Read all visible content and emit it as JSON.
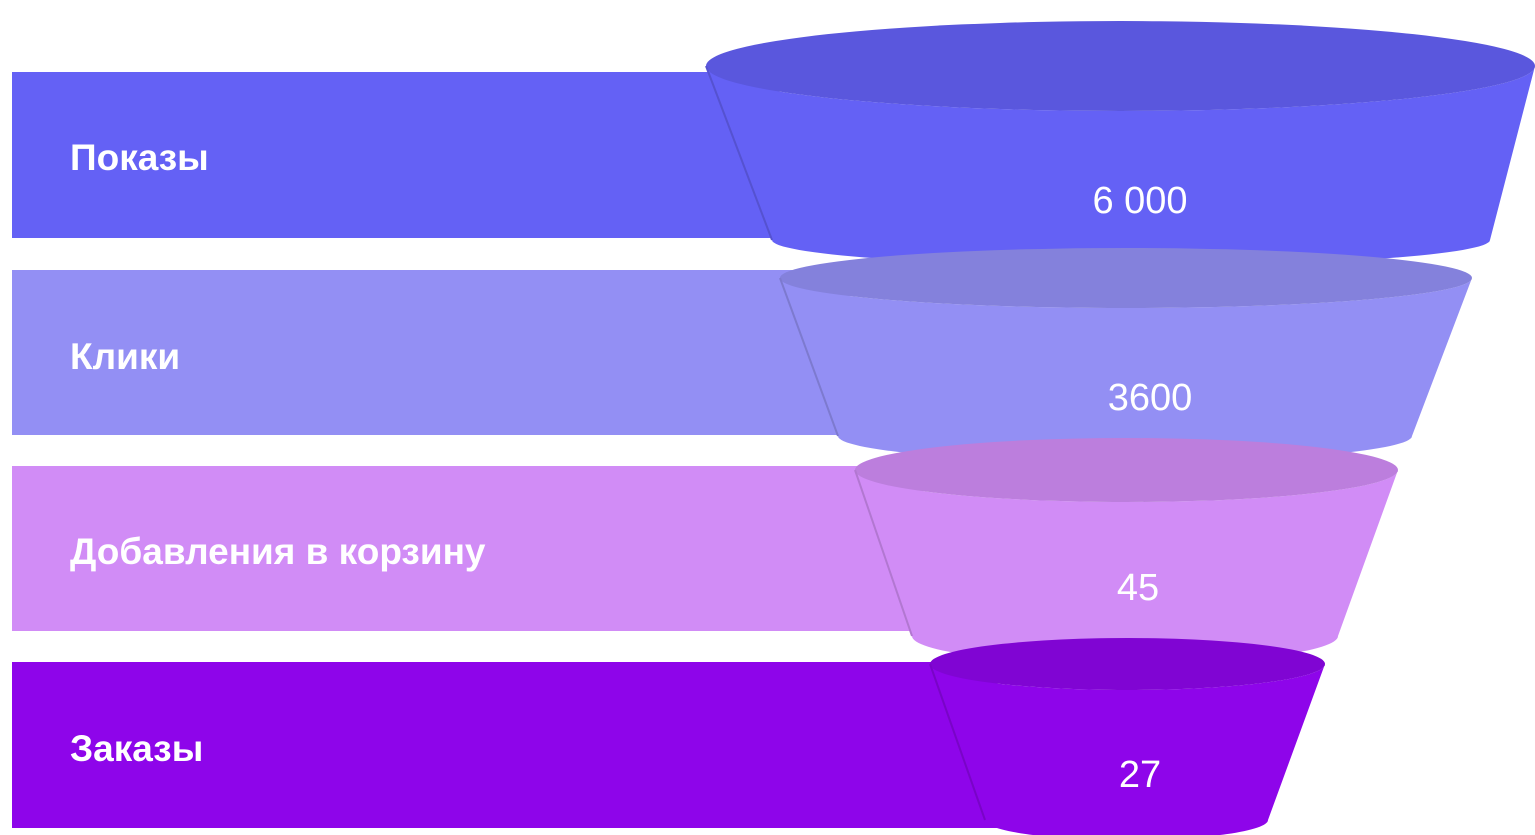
{
  "chart_data": {
    "type": "funnel",
    "stages": [
      {
        "label": "Показы",
        "value": 6000,
        "value_text": "6 000",
        "color": "#6461f5"
      },
      {
        "label": "Клики",
        "value": 3600,
        "value_text": "3600",
        "color": "#938ff4"
      },
      {
        "label": "Добавления в корзину",
        "value": 45,
        "value_text": "45",
        "color": "#d18cf6"
      },
      {
        "label": "Заказы",
        "value": 27,
        "value_text": "27",
        "color": "#8e05ea"
      }
    ]
  }
}
